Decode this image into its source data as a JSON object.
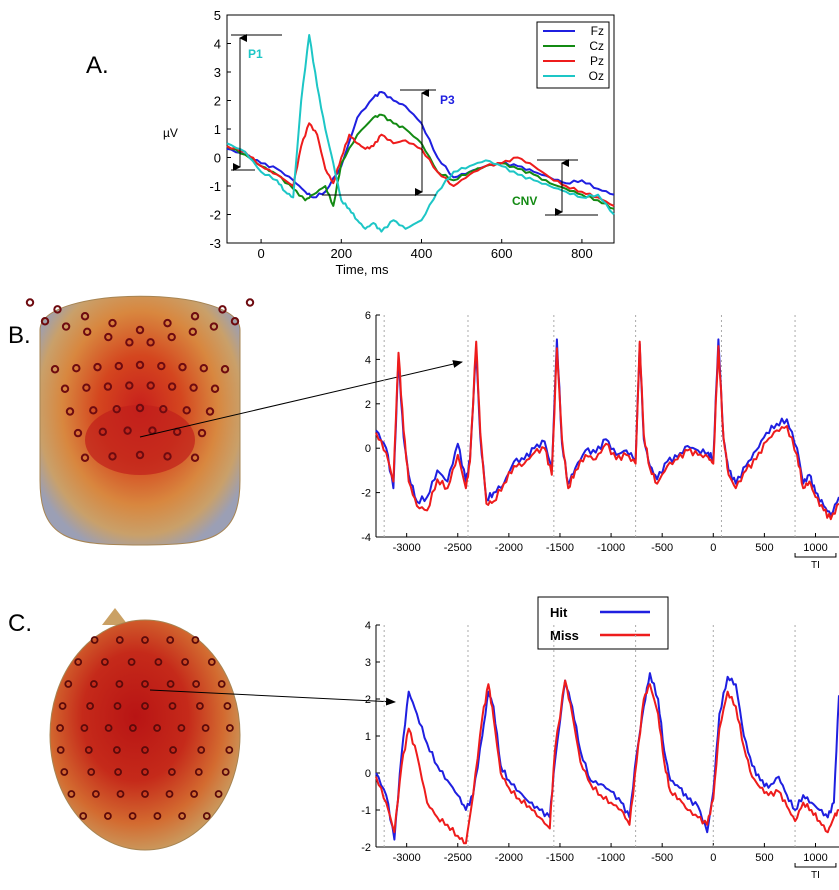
{
  "panels": {
    "a": "A.",
    "b": "B.",
    "c": "C."
  },
  "colors": {
    "fz": "#1f1fe0",
    "cz": "#138a13",
    "pz": "#ee1c1c",
    "oz": "#1dc6c6",
    "hit": "#1f1fe0",
    "miss": "#ee1c1c",
    "annot_p1": "#1dc6c6",
    "annot_p3": "#1f1fe0",
    "annot_cnv": "#138a13"
  },
  "icons": {
    "head_b": "scalp-map-back-view-icon",
    "head_c": "scalp-map-top-view-icon"
  },
  "legend_hit_miss": {
    "hit": "Hit",
    "miss": "Miss"
  },
  "chart_data": [
    {
      "type": "line",
      "panel": "A",
      "title": "",
      "xlabel": "Time, ms",
      "ylabel": "µV",
      "xlim": [
        -85,
        880
      ],
      "ylim": [
        -3,
        5
      ],
      "xticks": [
        0,
        200,
        400,
        600,
        800
      ],
      "yticks": [
        -3,
        -2,
        -1,
        0,
        1,
        2,
        3,
        4,
        5
      ],
      "grid": false,
      "legend_position": "top-right",
      "annotations": [
        {
          "label": "P1",
          "x": 0,
          "y": 3.8
        },
        {
          "label": "P3",
          "x": 440,
          "y": 2.2
        },
        {
          "label": "CNV",
          "x": 680,
          "y": -1.5
        }
      ],
      "series": [
        {
          "name": "Fz",
          "color_key": "fz",
          "x": [
            -85,
            -40,
            0,
            40,
            80,
            110,
            130,
            160,
            200,
            240,
            280,
            300,
            330,
            360,
            400,
            440,
            480,
            520,
            560,
            600,
            640,
            680,
            720,
            760,
            800,
            840,
            880
          ],
          "y": [
            0.3,
            0.1,
            -0.2,
            -0.4,
            -0.8,
            -1.2,
            -1.4,
            -1.2,
            -0.3,
            1.4,
            2.1,
            2.3,
            2.0,
            1.8,
            1.2,
            0,
            -0.7,
            -0.5,
            -0.3,
            -0.2,
            -0.3,
            -0.5,
            -0.7,
            -0.9,
            -0.8,
            -1.1,
            -1.3
          ]
        },
        {
          "name": "Cz",
          "color_key": "cz",
          "x": [
            -85,
            -40,
            0,
            40,
            80,
            110,
            130,
            160,
            180,
            200,
            240,
            280,
            300,
            330,
            360,
            400,
            440,
            480,
            520,
            560,
            600,
            640,
            680,
            720,
            760,
            800,
            840,
            880
          ],
          "y": [
            0.4,
            0.1,
            -0.3,
            -0.6,
            -1.1,
            -1.5,
            -1.3,
            -1.0,
            -1.7,
            -0.2,
            0.8,
            1.4,
            1.5,
            1.2,
            1.0,
            0.5,
            -0.5,
            -0.8,
            -0.5,
            -0.3,
            -0.2,
            -0.4,
            -0.6,
            -0.9,
            -1.1,
            -1.3,
            -1.5,
            -1.8
          ]
        },
        {
          "name": "Pz",
          "color_key": "pz",
          "x": [
            -85,
            -40,
            0,
            40,
            80,
            100,
            120,
            140,
            160,
            180,
            200,
            220,
            240,
            260,
            280,
            300,
            330,
            360,
            400,
            440,
            480,
            520,
            560,
            600,
            640,
            680,
            720,
            760,
            800,
            840,
            880
          ],
          "y": [
            0.4,
            0.2,
            -0.3,
            -0.6,
            -1.0,
            0.4,
            1.2,
            0.8,
            -0.4,
            -0.9,
            0,
            0.8,
            0.5,
            0.3,
            0.4,
            0.8,
            0.5,
            0.6,
            0.3,
            -0.5,
            -1.0,
            -0.6,
            -0.3,
            -0.2,
            0,
            -0.3,
            -0.7,
            -1.0,
            -1.2,
            -1.4,
            -1.7
          ]
        },
        {
          "name": "Oz",
          "color_key": "oz",
          "x": [
            -85,
            -40,
            0,
            40,
            60,
            80,
            100,
            120,
            140,
            160,
            180,
            200,
            220,
            240,
            260,
            280,
            300,
            330,
            360,
            400,
            440,
            480,
            520,
            560,
            600,
            640,
            680,
            720,
            760,
            800,
            840,
            880
          ],
          "y": [
            0.5,
            0.2,
            -0.5,
            -0.8,
            -1.2,
            -1.4,
            2.0,
            4.3,
            2.5,
            1.0,
            -0.2,
            -1.5,
            -1.8,
            -2.2,
            -2.5,
            -2.3,
            -2.6,
            -2.2,
            -2.5,
            -2.2,
            -1.2,
            -0.5,
            -0.3,
            -0.1,
            -0.3,
            -0.6,
            -0.8,
            -1.0,
            -1.2,
            -1.4,
            -1.3,
            -2.0
          ]
        }
      ]
    },
    {
      "type": "line",
      "panel": "B",
      "title": "",
      "xlabel": "",
      "ylabel": "",
      "xlim": [
        -3300,
        1230
      ],
      "ylim": [
        -4,
        6
      ],
      "xticks": [
        -3000,
        -2500,
        -2000,
        -1500,
        -1000,
        -500,
        0,
        500,
        1000
      ],
      "yticks": [
        -4,
        -2,
        0,
        2,
        4,
        6
      ],
      "bracket_label": "TI",
      "grid": false,
      "series": [
        {
          "name": "Hit",
          "color_key": "hit",
          "x": [
            -3300,
            -3200,
            -3130,
            -3080,
            -3030,
            -2980,
            -2900,
            -2800,
            -2700,
            -2600,
            -2500,
            -2420,
            -2380,
            -2320,
            -2280,
            -2220,
            -2150,
            -2050,
            -1950,
            -1850,
            -1750,
            -1650,
            -1580,
            -1530,
            -1480,
            -1420,
            -1350,
            -1250,
            -1150,
            -1050,
            -950,
            -850,
            -760,
            -720,
            -680,
            -620,
            -550,
            -450,
            -350,
            -250,
            -150,
            -50,
            0,
            50,
            100,
            150,
            220,
            320,
            420,
            520,
            620,
            720,
            820,
            880,
            940,
            1000,
            1080,
            1150,
            1230
          ],
          "y": [
            0.8,
            0,
            -1.8,
            4.0,
            0.5,
            -1.2,
            -2.4,
            -2.2,
            -1.0,
            -1.5,
            0.2,
            -1.5,
            -0.5,
            4.5,
            0.5,
            -2.3,
            -2.0,
            -1.6,
            -0.6,
            -0.5,
            0,
            0.3,
            -1.0,
            4.9,
            0.2,
            -1.6,
            -0.9,
            -0.1,
            -0.2,
            0.4,
            -0.3,
            -0.1,
            -0.5,
            4.7,
            0.4,
            -0.8,
            -1.4,
            -0.6,
            -0.4,
            0.1,
            -0.1,
            -0.2,
            -0.5,
            4.9,
            0.4,
            -1.0,
            -1.6,
            -0.8,
            -0.1,
            0.7,
            1.1,
            1.3,
            0,
            -1.6,
            -1.2,
            -2.0,
            -2.6,
            -3.0,
            -2.2
          ]
        },
        {
          "name": "Miss",
          "color_key": "miss",
          "x": [
            -3300,
            -3200,
            -3130,
            -3080,
            -3030,
            -2980,
            -2900,
            -2800,
            -2700,
            -2600,
            -2500,
            -2420,
            -2380,
            -2320,
            -2280,
            -2220,
            -2150,
            -2050,
            -1950,
            -1850,
            -1750,
            -1650,
            -1580,
            -1530,
            -1480,
            -1420,
            -1350,
            -1250,
            -1150,
            -1050,
            -950,
            -850,
            -760,
            -720,
            -680,
            -620,
            -550,
            -450,
            -350,
            -250,
            -150,
            -50,
            0,
            50,
            100,
            150,
            220,
            320,
            420,
            520,
            620,
            720,
            820,
            880,
            940,
            1000,
            1080,
            1150,
            1230
          ],
          "y": [
            0.7,
            -0.2,
            -1.5,
            4.3,
            0.8,
            -1.5,
            -2.6,
            -2.8,
            -1.4,
            -1.8,
            -0.3,
            -1.8,
            -0.6,
            4.8,
            0.7,
            -2.5,
            -2.4,
            -1.6,
            -0.8,
            -0.7,
            -0.2,
            0,
            -1.2,
            4.5,
            0.4,
            -1.8,
            -1.0,
            -0.3,
            -0.5,
            0.2,
            -0.5,
            -0.3,
            -0.7,
            4.8,
            0.6,
            -0.9,
            -1.6,
            -0.8,
            -0.5,
            -0.1,
            -0.3,
            -0.4,
            -0.7,
            4.6,
            0.5,
            -1.2,
            -1.8,
            -1.0,
            -0.5,
            0.3,
            0.8,
            1.0,
            -0.3,
            -1.8,
            -1.5,
            -2.2,
            -2.8,
            -3.2,
            -2.5
          ]
        }
      ]
    },
    {
      "type": "line",
      "panel": "C",
      "title": "",
      "xlabel": "",
      "ylabel": "",
      "xlim": [
        -3300,
        1230
      ],
      "ylim": [
        -2,
        4
      ],
      "xticks": [
        -3000,
        -2500,
        -2000,
        -1500,
        -1000,
        -500,
        0,
        500,
        1000
      ],
      "yticks": [
        -2,
        -1,
        0,
        1,
        2,
        3,
        4
      ],
      "bracket_label": "TI",
      "grid": false,
      "series": [
        {
          "name": "Hit",
          "color_key": "hit",
          "x": [
            -3300,
            -3200,
            -3120,
            -3050,
            -2980,
            -2900,
            -2800,
            -2700,
            -2600,
            -2500,
            -2420,
            -2350,
            -2260,
            -2200,
            -2150,
            -2080,
            -2000,
            -1900,
            -1800,
            -1700,
            -1600,
            -1550,
            -1450,
            -1380,
            -1300,
            -1200,
            -1100,
            -1000,
            -900,
            -820,
            -750,
            -680,
            -620,
            -540,
            -480,
            -420,
            -330,
            -250,
            -150,
            -60,
            0,
            60,
            140,
            220,
            300,
            380,
            460,
            540,
            640,
            720,
            800,
            880,
            960,
            1040,
            1120,
            1180,
            1230
          ],
          "y": [
            0,
            -0.6,
            -1.8,
            0.5,
            2.2,
            1.6,
            0.8,
            0.2,
            -0.2,
            -0.6,
            -1.0,
            -0.6,
            1.0,
            2.2,
            1.8,
            0.2,
            -0.2,
            -0.5,
            -0.8,
            -1.0,
            -1.2,
            0.3,
            2.5,
            1.8,
            0.6,
            -0.2,
            -0.3,
            -0.5,
            -0.8,
            -1.2,
            0.5,
            1.8,
            2.7,
            2.0,
            0.6,
            -0.2,
            -0.4,
            -0.7,
            -0.9,
            -1.6,
            -0.5,
            1.6,
            2.6,
            2.4,
            1.0,
            0.2,
            -0.2,
            -0.4,
            -0.1,
            -0.6,
            -1.0,
            -0.6,
            -0.8,
            -1.0,
            -1.2,
            -0.8,
            2.1
          ]
        },
        {
          "name": "Miss",
          "color_key": "miss",
          "x": [
            -3300,
            -3200,
            -3120,
            -3050,
            -2980,
            -2900,
            -2800,
            -2700,
            -2600,
            -2500,
            -2420,
            -2350,
            -2260,
            -2200,
            -2150,
            -2080,
            -2000,
            -1900,
            -1800,
            -1700,
            -1600,
            -1550,
            -1450,
            -1380,
            -1300,
            -1200,
            -1100,
            -1000,
            -900,
            -820,
            -750,
            -680,
            -620,
            -540,
            -480,
            -420,
            -330,
            -250,
            -150,
            -60,
            0,
            60,
            140,
            220,
            300,
            380,
            460,
            540,
            640,
            720,
            800,
            880,
            960,
            1040,
            1120,
            1180,
            1230
          ],
          "y": [
            -0.1,
            -0.8,
            -1.6,
            0.2,
            1.2,
            0.5,
            -0.8,
            -1.2,
            -1.4,
            -1.7,
            -1.9,
            -0.6,
            1.5,
            2.4,
            1.5,
            0,
            -0.4,
            -0.7,
            -0.9,
            -1.2,
            -1.5,
            0.6,
            2.5,
            1.6,
            0.3,
            -0.3,
            -0.6,
            -0.8,
            -1.0,
            -1.4,
            0.3,
            2.0,
            2.4,
            1.6,
            0.3,
            -0.5,
            -0.7,
            -1.0,
            -1.2,
            -1.4,
            -0.7,
            1.2,
            2.2,
            1.8,
            0.7,
            -0.1,
            -0.4,
            -0.6,
            -0.5,
            -0.9,
            -1.3,
            -0.8,
            -1.0,
            -1.3,
            -1.6,
            -1.2,
            -1.0
          ]
        }
      ]
    }
  ]
}
